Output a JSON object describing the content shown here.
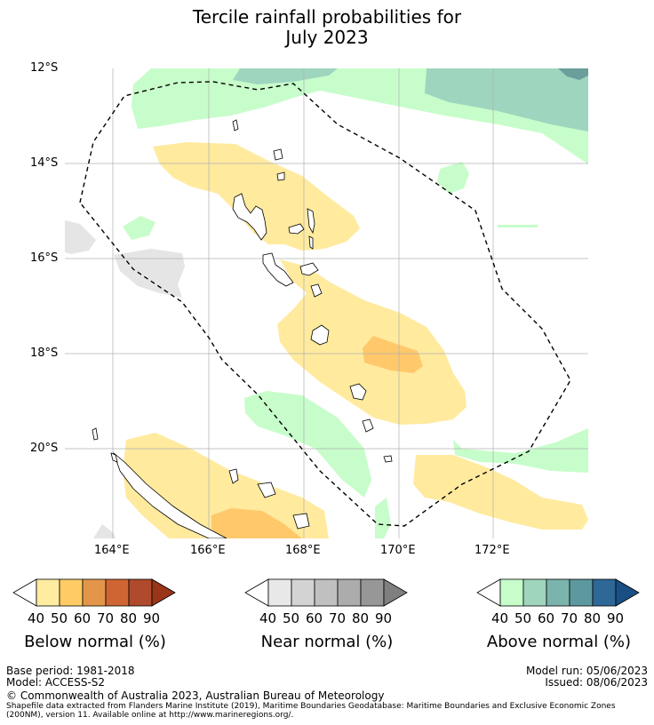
{
  "title": {
    "line1": "Tercile rainfall probabilities for",
    "line2": "July 2023"
  },
  "map": {
    "lat_labels": [
      "12°S",
      "14°S",
      "16°S",
      "18°S",
      "20°S"
    ],
    "lon_labels": [
      "164°E",
      "166°E",
      "168°E",
      "170°E",
      "172°E"
    ],
    "layers": {
      "above_normal_colors": [
        "#c7fdca",
        "#9ed5bf",
        "#6a9f9c"
      ],
      "below_normal_colors": [
        "#ffea9e",
        "#ffc86b"
      ],
      "near_normal_color": "#e5e5e5"
    }
  },
  "colorbars": [
    {
      "name": "below",
      "label": "Below normal (%)",
      "ticks": [
        "40",
        "50",
        "60",
        "70",
        "80",
        "90"
      ],
      "colors": [
        "#ffeca0",
        "#fecb64",
        "#e3964a",
        "#cf6533",
        "#b04a2c",
        "#993519"
      ]
    },
    {
      "name": "near",
      "label": "Near normal (%)",
      "ticks": [
        "40",
        "50",
        "60",
        "70",
        "80",
        "90"
      ],
      "colors": [
        "#e8e8e8",
        "#d3d3d3",
        "#c0c0c0",
        "#acacac",
        "#979797",
        "#7f7f7f"
      ]
    },
    {
      "name": "above",
      "label": "Above normal (%)",
      "ticks": [
        "40",
        "50",
        "60",
        "70",
        "80",
        "90"
      ],
      "colors": [
        "#c7fdca",
        "#9fd5bc",
        "#7ab4ad",
        "#5e989f",
        "#2f6797",
        "#1a4f85"
      ]
    }
  ],
  "footer": {
    "base_period": "Base period: 1981-2018",
    "model": "Model: ACCESS-S2",
    "model_run": "Model run: 05/06/2023",
    "issued": "Issued: 08/06/2023",
    "copyright": "© Commonwealth of Australia 2023, Australian Bureau of Meteorology",
    "shapefile_line1": "Shapefile data extracted from Flanders Marine Institute (2019), Maritime Boundaries Geodatabase: Maritime Boundaries and Exclusive Economic Zones",
    "shapefile_line2": "(200NM), version 11. Available online at http://www.marineregions.org/."
  }
}
